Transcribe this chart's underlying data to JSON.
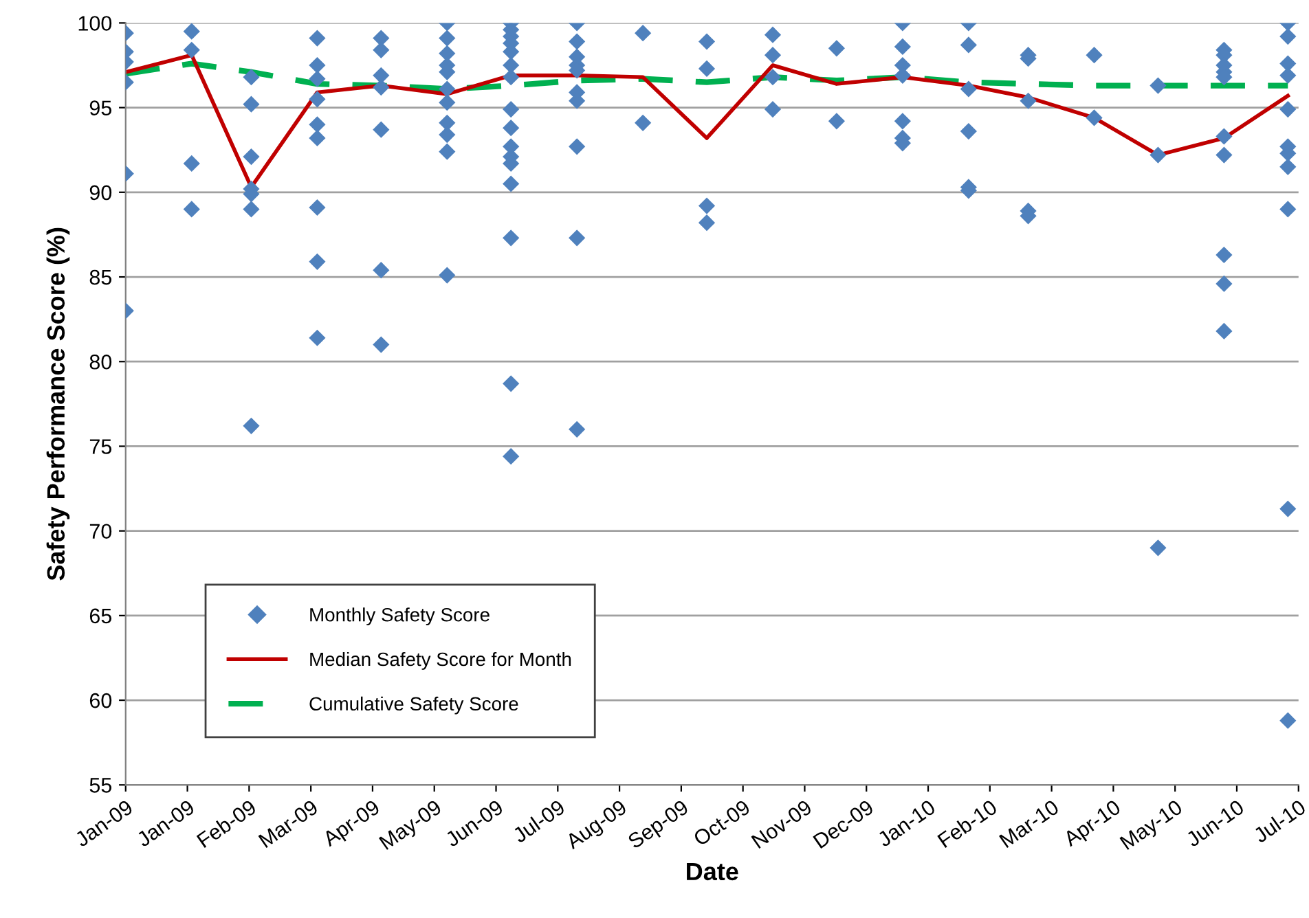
{
  "chart_data": {
    "type": "line",
    "xlabel": "Date",
    "ylabel": "Safety Performance Score (%)",
    "xlim": [
      "2009-01-01",
      "2010-07-06"
    ],
    "xticks": [
      {
        "value": "2009-01-01",
        "label": "Jan-09"
      },
      {
        "value": "2009-01-30",
        "label": "Jan-09"
      },
      {
        "value": "2009-02-28",
        "label": "Feb-09"
      },
      {
        "value": "2009-03-29",
        "label": "Mar-09"
      },
      {
        "value": "2009-04-27",
        "label": "Apr-09"
      },
      {
        "value": "2009-05-26",
        "label": "May-09"
      },
      {
        "value": "2009-06-24",
        "label": "Jun-09"
      },
      {
        "value": "2009-07-23",
        "label": "Jul-09"
      },
      {
        "value": "2009-08-21",
        "label": "Aug-09"
      },
      {
        "value": "2009-09-19",
        "label": "Sep-09"
      },
      {
        "value": "2009-10-18",
        "label": "Oct-09"
      },
      {
        "value": "2009-11-16",
        "label": "Nov-09"
      },
      {
        "value": "2009-12-15",
        "label": "Dec-09"
      },
      {
        "value": "2010-01-13",
        "label": "Jan-10"
      },
      {
        "value": "2010-02-11",
        "label": "Feb-10"
      },
      {
        "value": "2010-03-12",
        "label": "Mar-10"
      },
      {
        "value": "2010-04-10",
        "label": "Apr-10"
      },
      {
        "value": "2010-05-09",
        "label": "May-10"
      },
      {
        "value": "2010-06-07",
        "label": "Jun-10"
      },
      {
        "value": "2010-07-06",
        "label": "Jul-10"
      }
    ],
    "x": [
      "2009-01",
      "2009-02",
      "2009-03",
      "2009-04",
      "2009-05",
      "2009-06",
      "2009-07",
      "2009-08",
      "2009-09",
      "2009-10",
      "2009-11",
      "2009-12",
      "2010-01",
      "2010-02",
      "2010-03",
      "2010-04",
      "2010-05",
      "2010-06",
      "2010-07"
    ],
    "ylim": [
      55,
      100
    ],
    "yticks": [
      55,
      60,
      65,
      70,
      75,
      80,
      85,
      90,
      95,
      100
    ],
    "grid": "y",
    "legend": "bottom left",
    "series": [
      {
        "name": "Monthly Safety Score",
        "type": "scatter",
        "marker": "diamond",
        "color": "#4f81bd",
        "x": [
          "2009-01",
          "2009-01",
          "2009-01",
          "2009-01",
          "2009-01",
          "2009-01",
          "2009-02",
          "2009-02",
          "2009-02",
          "2009-02",
          "2009-03",
          "2009-03",
          "2009-03",
          "2009-03",
          "2009-03",
          "2009-03",
          "2009-03",
          "2009-04",
          "2009-04",
          "2009-04",
          "2009-04",
          "2009-04",
          "2009-04",
          "2009-04",
          "2009-04",
          "2009-04",
          "2009-05",
          "2009-05",
          "2009-05",
          "2009-05",
          "2009-05",
          "2009-05",
          "2009-05",
          "2009-06",
          "2009-06",
          "2009-06",
          "2009-06",
          "2009-06",
          "2009-06",
          "2009-06",
          "2009-06",
          "2009-06",
          "2009-06",
          "2009-06",
          "2009-07",
          "2009-07",
          "2009-07",
          "2009-07",
          "2009-07",
          "2009-07",
          "2009-07",
          "2009-07",
          "2009-07",
          "2009-07",
          "2009-07",
          "2009-07",
          "2009-07",
          "2009-07",
          "2009-07",
          "2009-07",
          "2009-08",
          "2009-08",
          "2009-08",
          "2009-08",
          "2009-08",
          "2009-08",
          "2009-08",
          "2009-08",
          "2009-08",
          "2009-08",
          "2009-09",
          "2009-09",
          "2009-10",
          "2009-10",
          "2009-10",
          "2009-10",
          "2009-11",
          "2009-11",
          "2009-11",
          "2009-11",
          "2009-12",
          "2009-12",
          "2010-01",
          "2010-01",
          "2010-01",
          "2010-01",
          "2010-01",
          "2010-01",
          "2010-01",
          "2010-02",
          "2010-02",
          "2010-02",
          "2010-02",
          "2010-02",
          "2010-02",
          "2010-03",
          "2010-03",
          "2010-03",
          "2010-03",
          "2010-03",
          "2010-04",
          "2010-04",
          "2010-05",
          "2010-05",
          "2010-05",
          "2010-06",
          "2010-06",
          "2010-06",
          "2010-06",
          "2010-06",
          "2010-06",
          "2010-06",
          "2010-06",
          "2010-06",
          "2010-06",
          "2010-07",
          "2010-07",
          "2010-07",
          "2010-07",
          "2010-07",
          "2010-07",
          "2010-07",
          "2010-07",
          "2010-07",
          "2010-07",
          "2010-07"
        ],
        "values": [
          99.4,
          98.3,
          97.7,
          96.5,
          91.1,
          83.0,
          99.5,
          98.4,
          91.7,
          89.0,
          96.8,
          95.2,
          92.1,
          90.2,
          89.9,
          89.0,
          76.2,
          99.1,
          97.5,
          96.7,
          95.5,
          94.0,
          93.2,
          89.1,
          85.9,
          81.4,
          99.1,
          98.4,
          96.9,
          96.2,
          93.7,
          85.4,
          81.0,
          100,
          99.1,
          98.2,
          97.5,
          97.1,
          96.1,
          95.3,
          94.1,
          93.4,
          92.4,
          85.1,
          100,
          99.6,
          99.2,
          98.8,
          98.3,
          97.5,
          96.8,
          94.9,
          93.8,
          92.7,
          92.1,
          91.7,
          90.5,
          87.3,
          78.7,
          74.4,
          100,
          98.9,
          98.0,
          97.5,
          97.2,
          95.9,
          95.4,
          92.7,
          87.3,
          76.0,
          99.4,
          94.1,
          98.9,
          97.3,
          89.2,
          88.2,
          99.3,
          98.1,
          96.8,
          94.9,
          98.5,
          94.2,
          100,
          98.6,
          97.5,
          96.9,
          94.2,
          93.2,
          92.9,
          100,
          98.7,
          96.1,
          93.6,
          90.3,
          90.1,
          98.1,
          97.9,
          95.4,
          88.9,
          88.6,
          98.1,
          94.4,
          96.3,
          92.2,
          69.0,
          98.4,
          98.1,
          97.5,
          97.1,
          96.8,
          93.3,
          92.2,
          86.3,
          84.6,
          81.8,
          100,
          99.2,
          97.6,
          96.9,
          94.9,
          92.7,
          92.3,
          91.5,
          89.0,
          71.3,
          58.8
        ]
      },
      {
        "name": "Median Safety Score for Month",
        "line_style": "solid",
        "color": "#c00000",
        "values": [
          97.1,
          98.1,
          90.3,
          95.9,
          96.3,
          95.8,
          96.9,
          96.9,
          96.8,
          93.2,
          97.5,
          96.4,
          96.8,
          96.3,
          95.6,
          94.4,
          92.2,
          93.2,
          95.7
        ]
      },
      {
        "name": "Cumulative Safety Score",
        "line_style": "dashed",
        "color": "#00b050",
        "values": [
          97.0,
          97.6,
          97.1,
          96.4,
          96.3,
          96.1,
          96.3,
          96.6,
          96.7,
          96.5,
          96.8,
          96.6,
          96.8,
          96.5,
          96.4,
          96.3,
          96.3,
          96.3,
          96.3
        ]
      }
    ]
  }
}
